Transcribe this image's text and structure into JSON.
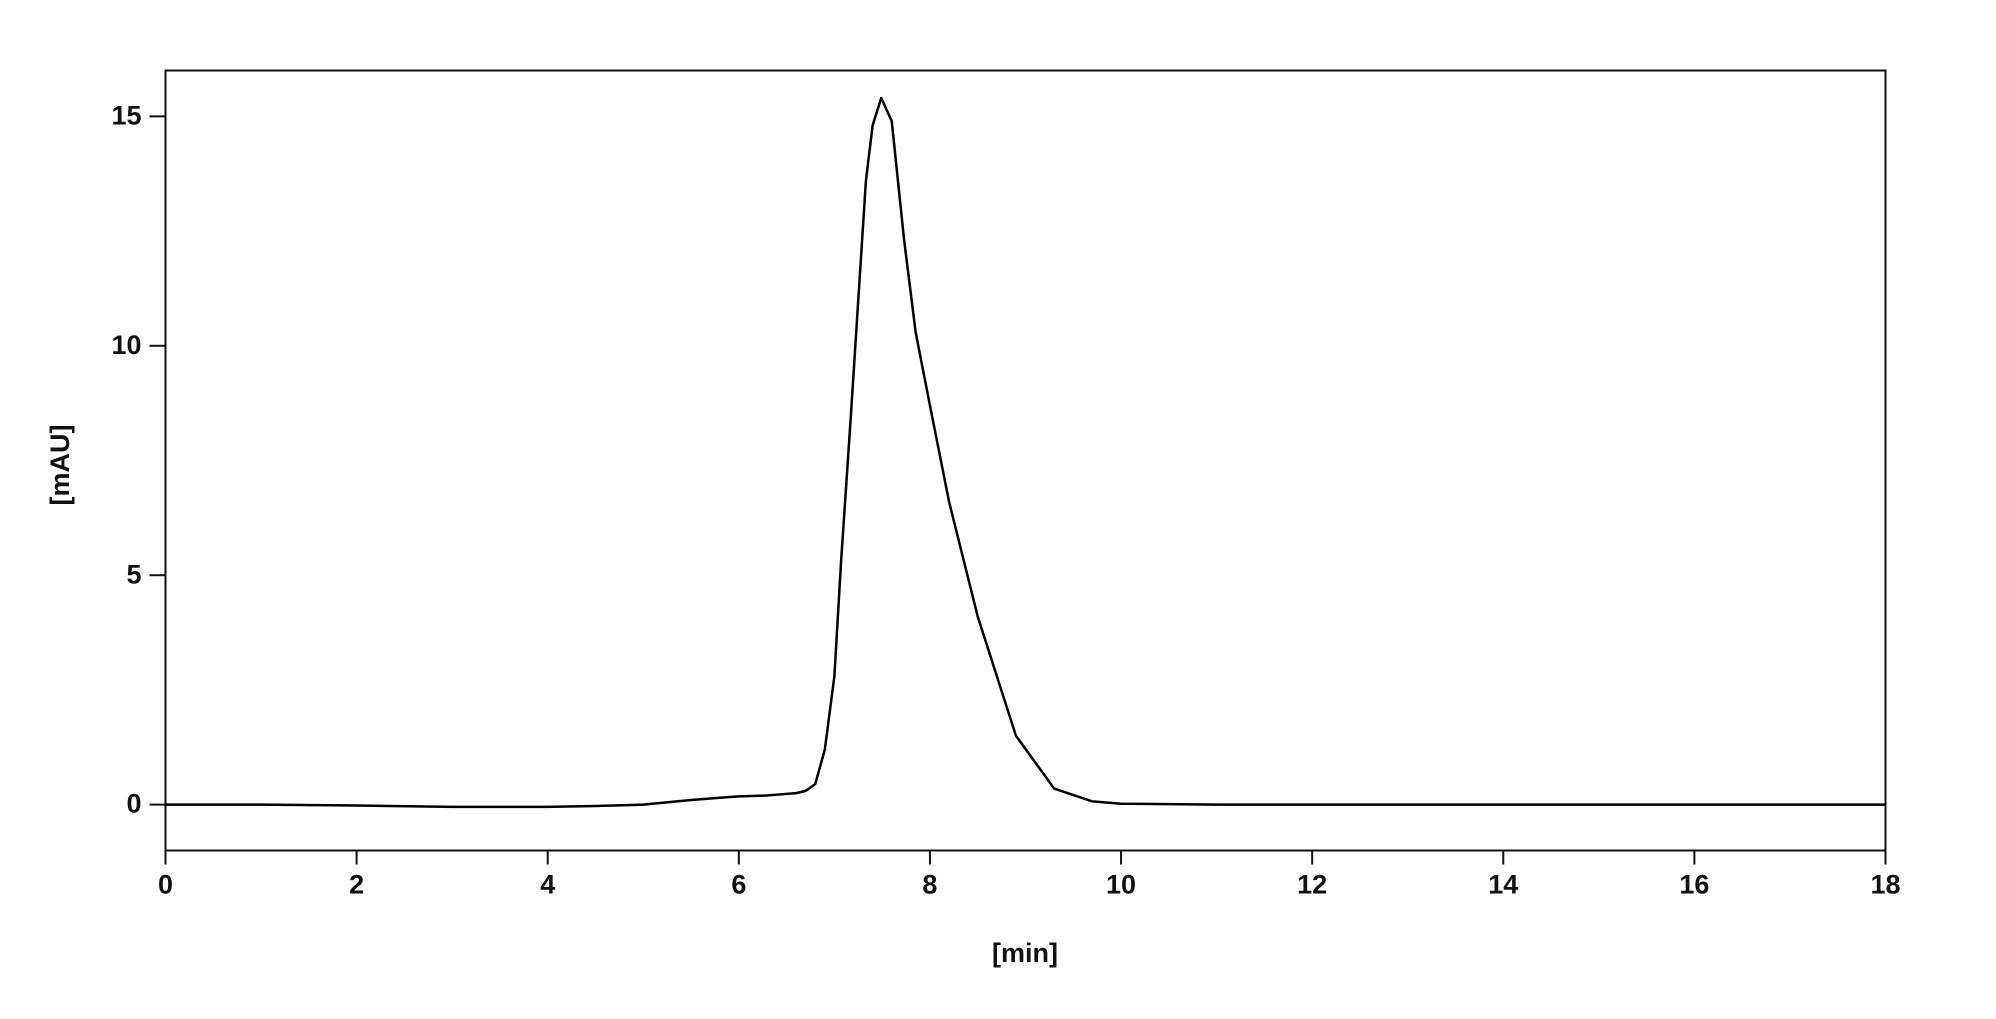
{
  "chart_data": {
    "type": "line",
    "x_label": "[min]",
    "y_label": "[mAU]",
    "xlim": [
      0,
      18
    ],
    "ylim": [
      -1,
      16
    ],
    "xticks": [
      0,
      2,
      4,
      6,
      8,
      10,
      12,
      14,
      16,
      18
    ],
    "yticks": [
      0,
      5,
      10,
      15
    ],
    "grid": false,
    "series": [
      {
        "color": "#000000",
        "x": [
          0,
          1,
          2,
          3,
          4,
          4.5,
          5,
          5.5,
          5.8,
          6,
          6.3,
          6.6,
          6.7,
          6.8,
          6.9,
          7.0,
          7.07,
          7.17,
          7.33,
          7.4,
          7.49,
          7.6,
          7.73,
          7.85,
          8.0,
          8.2,
          8.5,
          8.9,
          9.3,
          9.7,
          10,
          11,
          12,
          14,
          16,
          18
        ],
        "values": [
          0,
          0,
          -0.02,
          -0.05,
          -0.05,
          -0.03,
          0,
          0.1,
          0.15,
          0.18,
          0.2,
          0.25,
          0.3,
          0.45,
          1.2,
          2.8,
          5.3,
          8.4,
          13.6,
          14.8,
          15.4,
          14.9,
          12.3,
          10.3,
          8.7,
          6.6,
          4.1,
          1.5,
          0.35,
          0.07,
          0.02,
          0,
          0,
          0,
          0,
          0
        ]
      }
    ]
  }
}
